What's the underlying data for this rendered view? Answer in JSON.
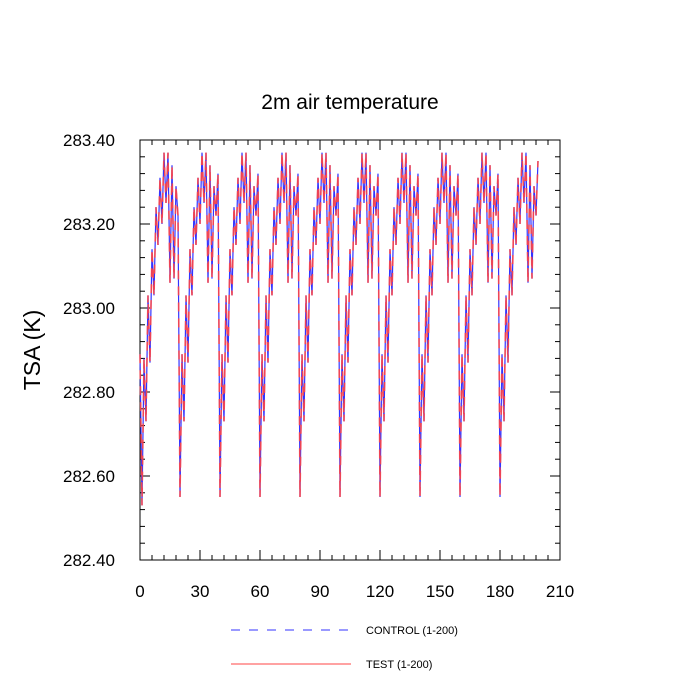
{
  "chart_data": {
    "type": "line",
    "title": "2m air temperature",
    "xlabel": "",
    "ylabel": "TSA  (K)",
    "xlim": [
      0,
      210
    ],
    "ylim": [
      282.4,
      283.4
    ],
    "x_ticks": [
      0,
      30,
      60,
      90,
      120,
      150,
      180,
      210
    ],
    "x_tick_labels": [
      "0",
      "30",
      "60",
      "90",
      "120",
      "150",
      "180",
      "210"
    ],
    "y_ticks": [
      282.4,
      282.6,
      282.8,
      283.0,
      283.2,
      283.4
    ],
    "y_tick_labels": [
      "282.40",
      "282.60",
      "282.80",
      "283.00",
      "283.20",
      "283.40"
    ],
    "grid": false,
    "legend_position": "bottom-center",
    "period": 20,
    "cycle_x": [
      0,
      1,
      2,
      3,
      4,
      5,
      6,
      7,
      8,
      9,
      10,
      11,
      12,
      13,
      14,
      15,
      16,
      17,
      18,
      19
    ],
    "cycle_values": [
      282.55,
      282.89,
      282.73,
      283.03,
      282.87,
      283.14,
      283.03,
      283.24,
      283.15,
      283.31,
      283.2,
      283.37,
      283.25,
      283.37,
      283.06,
      283.34,
      283.07,
      283.29,
      283.22,
      283.32
    ],
    "first_cycle_values": [
      282.89,
      282.53,
      282.88,
      282.73,
      283.03,
      282.87,
      283.14,
      283.03,
      283.24,
      283.15,
      283.31,
      283.2,
      283.37,
      283.25,
      283.37,
      283.06,
      283.34,
      283.07,
      283.29,
      283.22,
      283.32
    ],
    "last_x": 199,
    "last_value": 283.35,
    "series": [
      {
        "name": "CONTROL (1-200)",
        "color": "#3333ff",
        "dash": "dashed"
      },
      {
        "name": "TEST (1-200)",
        "color": "#ff4444",
        "dash": "solid"
      }
    ]
  }
}
